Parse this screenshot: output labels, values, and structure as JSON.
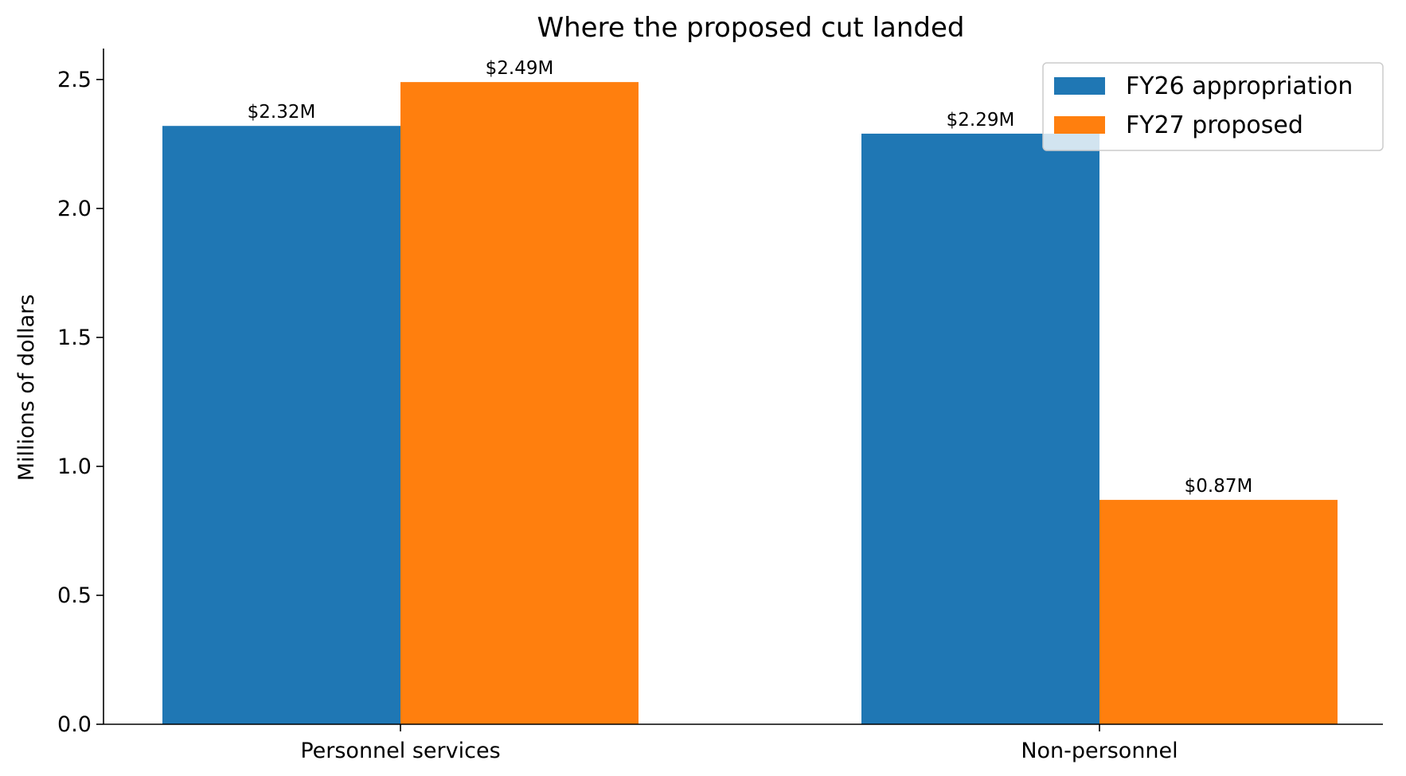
{
  "chart_data": {
    "type": "bar",
    "title": "Where the proposed cut landed",
    "xlabel": "",
    "ylabel": "Millions of dollars",
    "categories": [
      "Personnel services",
      "Non-personnel"
    ],
    "series": [
      {
        "name": "FY26 appropriation",
        "color": "#1f77b4",
        "values": [
          2.32,
          2.29
        ],
        "labels": [
          "$2.32M",
          "$2.29M"
        ]
      },
      {
        "name": "FY27 proposed",
        "color": "#ff7f0e",
        "values": [
          2.49,
          0.87
        ],
        "labels": [
          "$2.49M",
          "$0.87M"
        ]
      }
    ],
    "ylim": [
      0,
      2.62
    ],
    "yticks": [
      0.0,
      0.5,
      1.0,
      1.5,
      2.0,
      2.5
    ],
    "ytick_labels": [
      "0.0",
      "0.5",
      "1.0",
      "1.5",
      "2.0",
      "2.5"
    ],
    "grid": false,
    "legend_position": "top-right"
  }
}
